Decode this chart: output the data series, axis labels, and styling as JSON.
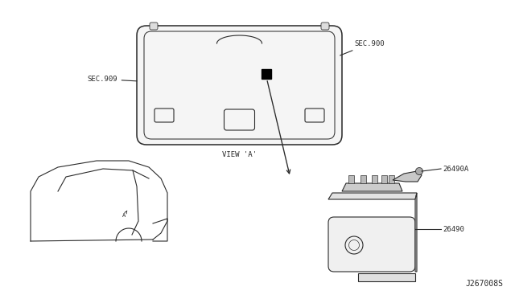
{
  "bg_color": "#ffffff",
  "line_color": "#2a2a2a",
  "labels": {
    "sec900": "SEC.900",
    "sec909": "SEC.909",
    "view_a": "VIEW 'A'",
    "part_26490A": "26490A",
    "part_26490": "26490",
    "diagram_code": "J267008S"
  },
  "font_size_label": 6.5,
  "font_size_diagram_id": 7.0
}
